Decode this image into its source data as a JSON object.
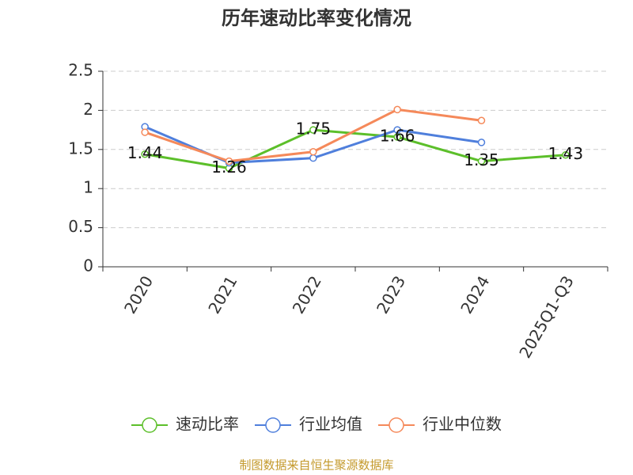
{
  "chart_data": {
    "type": "line",
    "title": "历年速动比率变化情况",
    "categories": [
      "2020",
      "2021",
      "2022",
      "2023",
      "2024",
      "2025Q1-Q3"
    ],
    "series": [
      {
        "name": "速动比率",
        "color": "#5cbf2a",
        "values": [
          1.44,
          1.26,
          1.75,
          1.66,
          1.35,
          1.43
        ],
        "data_labels": true
      },
      {
        "name": "行业均值",
        "color": "#4f7fdc",
        "values": [
          1.79,
          1.33,
          1.39,
          1.75,
          1.59,
          null
        ]
      },
      {
        "name": "行业中位数",
        "color": "#f5895a",
        "values": [
          1.72,
          1.35,
          1.47,
          2.01,
          1.87,
          null
        ]
      }
    ],
    "ylim": [
      0,
      2.5
    ],
    "yticks": [
      0,
      0.5,
      1,
      1.5,
      2,
      2.5
    ],
    "grid": true,
    "source": "制图数据来自恒生聚源数据库"
  }
}
